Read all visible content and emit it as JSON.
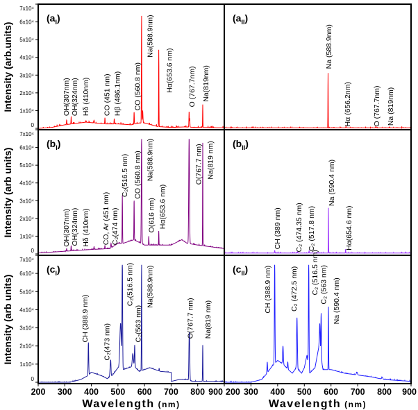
{
  "figure": {
    "xlabel": "Wavelength",
    "xlabel_unit": "(nm)",
    "xticks_left": [
      "200",
      "300",
      "400",
      "500",
      "600",
      "700",
      "800",
      "900"
    ],
    "xticks_right": [
      "200",
      "300",
      "400",
      "500",
      "600",
      "700",
      "800",
      "900"
    ]
  },
  "chart_data": [
    {
      "panel": {
        "letter": "a",
        "sub": "I"
      },
      "type": "line",
      "color": "#ff0000",
      "ylabel": "Intensity (arb.units)",
      "yticks": [
        "0",
        "1x10⁴",
        "2x10⁴",
        "3x10⁴",
        "4x10⁴",
        "5x10⁴",
        "6x10⁴",
        "7x10⁴"
      ],
      "xlim": [
        200,
        900
      ],
      "ylim": [
        0,
        70000
      ],
      "baseline": [
        [
          200,
          0
        ],
        [
          250,
          500
        ],
        [
          300,
          2000
        ],
        [
          380,
          3500
        ],
        [
          450,
          2500
        ],
        [
          500,
          2500
        ],
        [
          550,
          2000
        ],
        [
          580,
          3000
        ],
        [
          600,
          3000
        ],
        [
          650,
          1000
        ],
        [
          700,
          500
        ],
        [
          750,
          800
        ],
        [
          800,
          500
        ],
        [
          900,
          300
        ]
      ],
      "peaks": [
        [
          307,
          2500,
          1
        ],
        [
          324,
          3500,
          1
        ],
        [
          410,
          1500,
          1.5
        ],
        [
          451,
          3500,
          1
        ],
        [
          486.1,
          3000,
          1
        ],
        [
          560.8,
          7000,
          1
        ],
        [
          588.9,
          61000,
          1
        ],
        [
          593,
          7000,
          1.5
        ],
        [
          653.6,
          44000,
          0.8
        ],
        [
          767.7,
          9000,
          1
        ],
        [
          770,
          5000,
          1
        ],
        [
          819,
          13000,
          0.8
        ]
      ],
      "annotations": [
        {
          "at": 307,
          "text": "OH(307nm)"
        },
        {
          "at": 324,
          "text": "OH(324nm)"
        },
        {
          "at": 410,
          "text": "Hδ (410nm)"
        },
        {
          "at": 451,
          "text": "CO (451 nm)"
        },
        {
          "at": 486.1,
          "text": "Hβ (486.1nm)"
        },
        {
          "at": 560.8,
          "text": "CO (560.8 nm)"
        },
        {
          "at": 588.9,
          "text": "Na(588.9nm)"
        },
        {
          "at": 653.6,
          "text": "Hα(653.6 nm)"
        },
        {
          "at": 767.7,
          "text": "O (767.7nm)"
        },
        {
          "at": 819,
          "text": "Na(819nm)"
        }
      ]
    },
    {
      "panel": {
        "letter": "a",
        "sub": "II"
      },
      "type": "line",
      "color": "#ff0000",
      "xlim": [
        200,
        900
      ],
      "ylim": [
        0,
        70000
      ],
      "baseline": [
        [
          200,
          300
        ],
        [
          900,
          300
        ]
      ],
      "peaks": [
        [
          588.9,
          31500,
          0.7
        ],
        [
          656.2,
          800,
          1
        ],
        [
          767.7,
          700,
          1
        ],
        [
          819,
          500,
          1
        ]
      ],
      "annotations": [
        {
          "at": 588.9,
          "text": "Na (588.9nm)"
        },
        {
          "at": 656.2,
          "text": "Hα (656.2nm)"
        },
        {
          "at": 767.7,
          "text": "O (767.7nm)"
        },
        {
          "at": 819,
          "text": "Na (819nm)"
        }
      ]
    },
    {
      "panel": {
        "letter": "b",
        "sub": "I"
      },
      "type": "line",
      "color": "#800080",
      "ylabel": "Intensity (arb units)",
      "yticks": [
        "0",
        "1x10⁴",
        "2x10⁴",
        "3x10⁴",
        "4x10⁴",
        "5x10⁴",
        "6x10⁴",
        "7x10⁴"
      ],
      "xlim": [
        200,
        900
      ],
      "ylim": [
        0,
        70000
      ],
      "baseline": [
        [
          200,
          500
        ],
        [
          300,
          1500
        ],
        [
          400,
          2500
        ],
        [
          470,
          3000
        ],
        [
          500,
          6000
        ],
        [
          520,
          6000
        ],
        [
          560,
          8000
        ],
        [
          600,
          5000
        ],
        [
          700,
          5000
        ],
        [
          740,
          8000
        ],
        [
          760,
          6000
        ],
        [
          800,
          5000
        ],
        [
          900,
          3000
        ]
      ],
      "peaks": [
        [
          307,
          1500,
          1
        ],
        [
          324,
          3000,
          1
        ],
        [
          410,
          1500,
          1
        ],
        [
          451,
          2000,
          1
        ],
        [
          474,
          2500,
          1.5
        ],
        [
          516.5,
          27000,
          1
        ],
        [
          560.8,
          23000,
          1
        ],
        [
          588.9,
          60000,
          1.5
        ],
        [
          616,
          5000,
          1
        ],
        [
          653.6,
          8000,
          0.8
        ],
        [
          767.7,
          60000,
          2
        ],
        [
          819,
          58000,
          0.8
        ]
      ],
      "annotations": [
        {
          "at": 307,
          "text": "OH(307nm)"
        },
        {
          "at": 324,
          "text": "OH(324nm)"
        },
        {
          "at": 410,
          "text": "Hδ (410nm)"
        },
        {
          "at": 451,
          "text": "CO, Ar (451 nm)"
        },
        {
          "at": 474,
          "text": "C₂(474 nm)"
        },
        {
          "at": 516.5,
          "text": "C₂(516.5 nm)"
        },
        {
          "at": 560.8,
          "text": "CO (560.8 nm)"
        },
        {
          "at": 588.9,
          "text": "Na(588.9nm)"
        },
        {
          "at": 616,
          "text": "O(616 nm)"
        },
        {
          "at": 653.6,
          "text": "Hα(653.6 nm)"
        },
        {
          "at": 767.7,
          "text": "O(767.7 nm)"
        },
        {
          "at": 819,
          "text": "Na(819 nm)"
        }
      ]
    },
    {
      "panel": {
        "letter": "b",
        "sub": "II"
      },
      "type": "line",
      "color": "#9b30ff",
      "xlim": [
        200,
        900
      ],
      "ylim": [
        0,
        70000
      ],
      "baseline": [
        [
          200,
          500
        ],
        [
          900,
          500
        ]
      ],
      "peaks": [
        [
          389,
          1500,
          1
        ],
        [
          474.35,
          700,
          1
        ],
        [
          517.8,
          1300,
          1
        ],
        [
          590.4,
          26000,
          0.7
        ],
        [
          654.6,
          2200,
          0.8
        ]
      ],
      "annotations": [
        {
          "at": 389,
          "text": "CH (389 nm)"
        },
        {
          "at": 474.35,
          "text": "C₂ (474.35 nm)"
        },
        {
          "at": 517.8,
          "text": "C₂ (517.8 nm)"
        },
        {
          "at": 590.4,
          "text": "Na (590.4 nm)"
        },
        {
          "at": 654.6,
          "text": "Hα(654.6 nm)"
        }
      ]
    },
    {
      "panel": {
        "letter": "c",
        "sub": "I"
      },
      "type": "line",
      "color": "#1a1a9a",
      "ylabel": "Intensity (arb units)",
      "yticks": [
        "0",
        "1x10⁴",
        "2x10⁴",
        "3x10⁴",
        "4x10⁴",
        "5x10⁴",
        "6x10⁴",
        "7x10⁴"
      ],
      "xlim": [
        200,
        900
      ],
      "ylim": [
        0,
        70000
      ],
      "baseline": [
        [
          200,
          0
        ],
        [
          320,
          0
        ],
        [
          360,
          1500
        ],
        [
          385,
          3500
        ],
        [
          400,
          5500
        ],
        [
          420,
          4500
        ],
        [
          440,
          3500
        ],
        [
          460,
          2000
        ],
        [
          480,
          4000
        ],
        [
          500,
          8000
        ],
        [
          520,
          7000
        ],
        [
          540,
          8000
        ],
        [
          560,
          9000
        ],
        [
          580,
          6000
        ],
        [
          600,
          7000
        ],
        [
          620,
          8000
        ],
        [
          660,
          6000
        ],
        [
          700,
          5500
        ],
        [
          701,
          500
        ],
        [
          730,
          1500
        ],
        [
          760,
          1500
        ],
        [
          780,
          500
        ],
        [
          820,
          500
        ],
        [
          900,
          300
        ]
      ],
      "peaks": [
        [
          388.9,
          18000,
          1.5
        ],
        [
          471,
          5000,
          2
        ],
        [
          473,
          7000,
          1.5
        ],
        [
          510,
          25000,
          4
        ],
        [
          516.5,
          60000,
          1.5
        ],
        [
          556,
          7000,
          3
        ],
        [
          563,
          12000,
          1.5
        ],
        [
          588.9,
          60000,
          1
        ],
        [
          655,
          1500,
          1
        ],
        [
          767.7,
          20000,
          1.5
        ],
        [
          769.5,
          18000,
          1.5
        ],
        [
          819,
          20000,
          1
        ]
      ],
      "annotations": [
        {
          "at": 388.9,
          "text": "CH (388.9 nm)"
        },
        {
          "at": 473,
          "text": "C₂(473 nm)"
        },
        {
          "at": 516.5,
          "text": "C₂(516.5 nm)"
        },
        {
          "at": 563,
          "text": "C₂(563 nm)"
        },
        {
          "at": 588.9,
          "text": "Na(588.9nm)"
        },
        {
          "at": 767.7,
          "text": "O(767.7 nm)"
        },
        {
          "at": 819,
          "text": "Na(819 nm)"
        }
      ]
    },
    {
      "panel": {
        "letter": "c",
        "sub": "II"
      },
      "type": "line",
      "color": "#2020ff",
      "xlim": [
        200,
        900
      ],
      "ylim": [
        0,
        70000
      ],
      "baseline": [
        [
          200,
          0
        ],
        [
          300,
          0
        ],
        [
          340,
          1500
        ],
        [
          355,
          4000
        ],
        [
          380,
          9000
        ],
        [
          400,
          12000
        ],
        [
          420,
          10000
        ],
        [
          440,
          7000
        ],
        [
          455,
          5000
        ],
        [
          470,
          8000
        ],
        [
          490,
          5000
        ],
        [
          500,
          8000
        ],
        [
          510,
          15000
        ],
        [
          520,
          5000
        ],
        [
          540,
          8000
        ],
        [
          555,
          20000
        ],
        [
          570,
          7000
        ],
        [
          600,
          7000
        ],
        [
          650,
          5000
        ],
        [
          700,
          4000
        ],
        [
          750,
          3000
        ],
        [
          800,
          1500
        ],
        [
          900,
          500
        ]
      ],
      "peaks": [
        [
          361,
          6000,
          1.5
        ],
        [
          388.9,
          58000,
          1.5
        ],
        [
          420,
          10000,
          2
        ],
        [
          438,
          4000,
          1.5
        ],
        [
          472.5,
          28000,
          2
        ],
        [
          516.5,
          58000,
          1.5
        ],
        [
          558,
          15000,
          2
        ],
        [
          563,
          25000,
          1.5
        ],
        [
          590.4,
          35000,
          1
        ],
        [
          697,
          1500,
          3
        ],
        [
          792,
          1000,
          3
        ]
      ],
      "annotations": [
        {
          "at": 388.9,
          "text": "CH (388.9 nm)"
        },
        {
          "at": 472.5,
          "text": "C₂ (472.5 nm)"
        },
        {
          "at": 516.5,
          "text": "C₂ (516.5 nm)"
        },
        {
          "at": 563,
          "text": "C₂ (563 nm)"
        },
        {
          "at": 590.4,
          "text": "Na (590.4 nm)"
        }
      ]
    }
  ]
}
